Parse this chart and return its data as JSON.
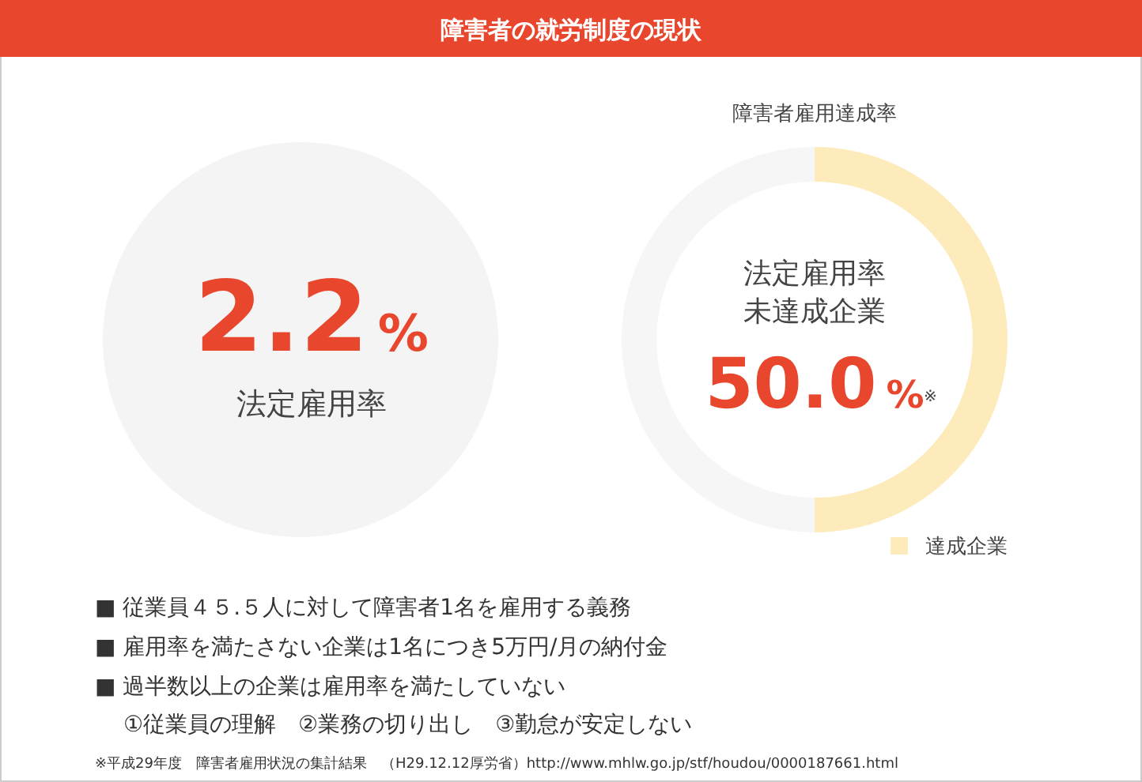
{
  "chart_data": [
    {
      "type": "other",
      "title": "障害者の就労制度の現状",
      "annotations": [
        "2.2%",
        "法定雇用率",
        "■ 従業員４５.５人に対して障害者1名を雇用する義務",
        "■ 雇用率を満たさない企業は1名につき5万円/月の納付金",
        "■ 過半数以上の企業は雇用率を満たしていない",
        "①従業員の理解　②業務の切り出し　③勤怠が安定しない",
        "※平成29年度　障害者雇用状況の集計結果　（H29.12.12厚労省）http://www.mhlw.go.jp/stf/houdou/0000187661.html"
      ]
    },
    {
      "type": "donut",
      "title": "障害者雇用達成率",
      "categories": [
        "達成企業",
        null
      ],
      "values": [
        50,
        50
      ],
      "colors": [
        "#fdebbb",
        "#f6f6f6"
      ],
      "value_labels": [
        null,
        "50.0%"
      ],
      "annotations": [
        "法定雇用率",
        "未達成企業",
        "※"
      ],
      "legend": "bottom right"
    }
  ]
}
